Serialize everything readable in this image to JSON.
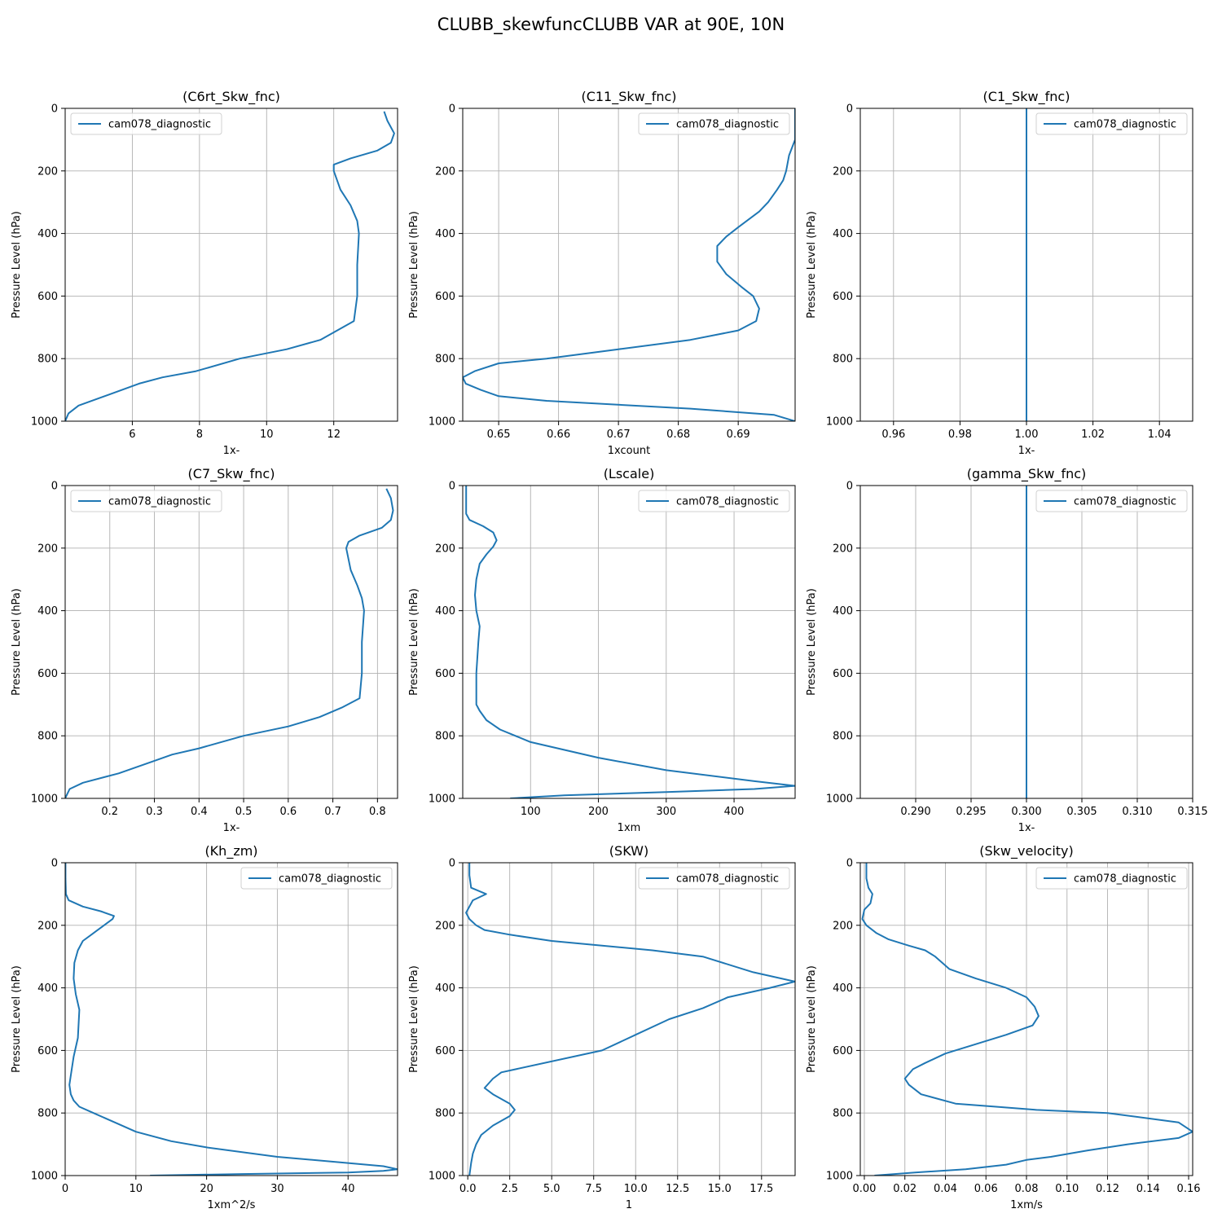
{
  "figure_title": "CLUBB_skewfuncCLUBB VAR at 90E, 10N",
  "colors": {
    "series": "#1f77b4",
    "grid": "#b0b0b0"
  },
  "chart_data": [
    {
      "type": "line",
      "title": "(C6rt_Skw_fnc)",
      "xlabel": "1x-",
      "ylabel": "Pressure Level (hPa)",
      "xlim": [
        4.0,
        13.9
      ],
      "ylim": [
        1000,
        0
      ],
      "y_inverted": true,
      "xticks": [
        6,
        8,
        10,
        12
      ],
      "xtick_labels": [
        "6",
        "8",
        "10",
        "12"
      ],
      "yticks": [
        0,
        200,
        400,
        600,
        800,
        1000
      ],
      "grid": true,
      "legend": "upper left",
      "series": [
        {
          "name": "cam078_diagnostic",
          "x": [
            13.5,
            13.6,
            13.8,
            13.7,
            13.3,
            12.5,
            12.0,
            12.0,
            12.2,
            12.5,
            12.7,
            12.75,
            12.7,
            12.7,
            12.6,
            11.6,
            10.6,
            9.2,
            7.9,
            6.9,
            6.2,
            5.3,
            4.4,
            4.1,
            4.0
          ],
          "y": [
            10,
            40,
            80,
            110,
            135,
            160,
            180,
            200,
            260,
            310,
            360,
            400,
            500,
            600,
            680,
            740,
            770,
            800,
            840,
            860,
            880,
            915,
            950,
            975,
            1000
          ]
        }
      ]
    },
    {
      "type": "line",
      "title": "(C11_Skw_fnc)",
      "xlabel": "1xcount",
      "ylabel": "Pressure Level (hPa)",
      "xlim": [
        0.644,
        0.6995
      ],
      "ylim": [
        1000,
        0
      ],
      "y_inverted": true,
      "xticks": [
        0.65,
        0.66,
        0.67,
        0.68,
        0.69
      ],
      "xtick_labels": [
        "0.65",
        "0.66",
        "0.67",
        "0.68",
        "0.69"
      ],
      "yticks": [
        0,
        200,
        400,
        600,
        800,
        1000
      ],
      "grid": true,
      "legend": "upper right",
      "series": [
        {
          "name": "cam078_diagnostic",
          "x": [
            0.6995,
            0.6995,
            0.6995,
            0.6985,
            0.698,
            0.6975,
            0.6965,
            0.695,
            0.6935,
            0.69,
            0.688,
            0.6865,
            0.6865,
            0.688,
            0.6905,
            0.6925,
            0.6935,
            0.693,
            0.69,
            0.682,
            0.67,
            0.658,
            0.65,
            0.646,
            0.644,
            0.6445,
            0.647,
            0.65,
            0.658,
            0.682,
            0.696,
            0.6995
          ],
          "y": [
            0,
            50,
            100,
            150,
            200,
            230,
            260,
            300,
            330,
            380,
            410,
            440,
            490,
            530,
            570,
            600,
            640,
            680,
            710,
            740,
            770,
            800,
            815,
            840,
            860,
            880,
            900,
            920,
            935,
            960,
            980,
            1000
          ]
        }
      ]
    },
    {
      "type": "line",
      "title": "(C1_Skw_fnc)",
      "xlabel": "1x-",
      "ylabel": "Pressure Level (hPa)",
      "xlim": [
        0.95,
        1.05
      ],
      "ylim": [
        1000,
        0
      ],
      "y_inverted": true,
      "xticks": [
        0.96,
        0.98,
        1.0,
        1.02,
        1.04
      ],
      "xtick_labels": [
        "0.96",
        "0.98",
        "1.00",
        "1.02",
        "1.04"
      ],
      "yticks": [
        0,
        200,
        400,
        600,
        800,
        1000
      ],
      "grid": true,
      "legend": "upper right",
      "series": [
        {
          "name": "cam078_diagnostic",
          "x": [
            1.0,
            1.0
          ],
          "y": [
            0,
            1000
          ]
        }
      ]
    },
    {
      "type": "line",
      "title": "(C7_Skw_fnc)",
      "xlabel": "1x-",
      "ylabel": "Pressure Level (hPa)",
      "xlim": [
        0.1,
        0.845
      ],
      "ylim": [
        1000,
        0
      ],
      "y_inverted": true,
      "xticks": [
        0.2,
        0.3,
        0.4,
        0.5,
        0.6,
        0.7,
        0.8
      ],
      "xtick_labels": [
        "0.2",
        "0.3",
        "0.4",
        "0.5",
        "0.6",
        "0.7",
        "0.8"
      ],
      "yticks": [
        0,
        200,
        400,
        600,
        800,
        1000
      ],
      "grid": true,
      "legend": "upper left",
      "series": [
        {
          "name": "cam078_diagnostic",
          "x": [
            0.82,
            0.83,
            0.835,
            0.83,
            0.81,
            0.76,
            0.735,
            0.73,
            0.74,
            0.755,
            0.765,
            0.77,
            0.765,
            0.765,
            0.76,
            0.72,
            0.67,
            0.6,
            0.5,
            0.4,
            0.34,
            0.3,
            0.22,
            0.14,
            0.11,
            0.1
          ],
          "y": [
            10,
            40,
            80,
            110,
            135,
            160,
            180,
            200,
            270,
            320,
            360,
            400,
            500,
            600,
            680,
            710,
            740,
            770,
            800,
            840,
            860,
            880,
            920,
            950,
            970,
            1000
          ]
        }
      ]
    },
    {
      "type": "line",
      "title": "(Lscale)",
      "xlabel": "1xm",
      "ylabel": "Pressure Level (hPa)",
      "xlim": [
        0,
        490
      ],
      "ylim": [
        1000,
        0
      ],
      "y_inverted": true,
      "xticks": [
        100,
        200,
        300,
        400
      ],
      "xtick_labels": [
        "100",
        "200",
        "300",
        "400"
      ],
      "yticks": [
        0,
        200,
        400,
        600,
        800,
        1000
      ],
      "grid": true,
      "legend": "upper right",
      "series": [
        {
          "name": "cam078_diagnostic",
          "x": [
            5,
            5,
            5,
            10,
            30,
            45,
            50,
            45,
            35,
            25,
            20,
            18,
            20,
            25,
            23,
            20,
            20,
            25,
            35,
            55,
            100,
            200,
            300,
            430,
            490,
            430,
            300,
            150,
            70
          ],
          "y": [
            0,
            50,
            90,
            110,
            130,
            150,
            175,
            195,
            220,
            250,
            300,
            350,
            400,
            450,
            500,
            600,
            700,
            720,
            750,
            780,
            820,
            870,
            910,
            945,
            960,
            970,
            980,
            990,
            1000
          ]
        }
      ]
    },
    {
      "type": "line",
      "title": "(gamma_Skw_fnc)",
      "xlabel": "1x-",
      "ylabel": "Pressure Level (hPa)",
      "xlim": [
        0.285,
        0.315
      ],
      "ylim": [
        1000,
        0
      ],
      "y_inverted": true,
      "xticks": [
        0.29,
        0.295,
        0.3,
        0.305,
        0.31,
        0.315
      ],
      "xtick_labels": [
        "0.290",
        "0.295",
        "0.300",
        "0.305",
        "0.310",
        "0.315"
      ],
      "yticks": [
        0,
        200,
        400,
        600,
        800,
        1000
      ],
      "grid": true,
      "legend": "upper right",
      "series": [
        {
          "name": "cam078_diagnostic",
          "x": [
            0.3,
            0.3
          ],
          "y": [
            0,
            1000
          ]
        }
      ]
    },
    {
      "type": "line",
      "title": "(Kh_zm)",
      "xlabel": "1xm^2/s",
      "ylabel": "Pressure Level (hPa)",
      "xlim": [
        0,
        47
      ],
      "ylim": [
        1000,
        0
      ],
      "y_inverted": true,
      "xticks": [
        0,
        10,
        20,
        30,
        40
      ],
      "xtick_labels": [
        "0",
        "10",
        "20",
        "30",
        "40"
      ],
      "yticks": [
        0,
        200,
        400,
        600,
        800,
        1000
      ],
      "grid": true,
      "legend": "upper right",
      "series": [
        {
          "name": "cam078_diagnostic",
          "x": [
            0.05,
            0.05,
            0.1,
            0.5,
            2.5,
            5.0,
            6.9,
            6.7,
            5.5,
            4.0,
            2.5,
            1.8,
            1.3,
            1.2,
            1.5,
            2.0,
            1.8,
            1.2,
            0.8,
            0.6,
            0.8,
            1.2,
            2.0,
            4.0,
            7.0,
            10.0,
            15.0,
            20.0,
            30.0,
            40.0,
            45.0,
            47.0,
            45.0,
            40.0,
            25.0,
            12.0
          ],
          "y": [
            0,
            50,
            100,
            120,
            140,
            155,
            170,
            180,
            200,
            225,
            250,
            280,
            320,
            370,
            420,
            470,
            560,
            620,
            680,
            710,
            740,
            760,
            780,
            800,
            830,
            860,
            890,
            910,
            940,
            960,
            970,
            980,
            985,
            990,
            995,
            1000
          ]
        }
      ]
    },
    {
      "type": "line",
      "title": "(SKW)",
      "xlabel": "1",
      "ylabel": "Pressure Level (hPa)",
      "xlim": [
        -0.3,
        19.5
      ],
      "ylim": [
        1000,
        0
      ],
      "y_inverted": true,
      "xticks": [
        0,
        2.5,
        5,
        7.5,
        10,
        12.5,
        15,
        17.5
      ],
      "xtick_labels": [
        "0.0",
        "2.5",
        "5.0",
        "7.5",
        "10.0",
        "12.5",
        "15.0",
        "17.5"
      ],
      "yticks": [
        0,
        200,
        400,
        600,
        800,
        1000
      ],
      "grid": true,
      "legend": "upper right",
      "series": [
        {
          "name": "cam078_diagnostic",
          "x": [
            0.1,
            0.1,
            0.2,
            1.1,
            0.3,
            0.1,
            -0.1,
            0.1,
            0.5,
            1.0,
            2.5,
            5.0,
            8.0,
            11.0,
            14.0,
            17.0,
            19.5,
            18.0,
            15.5,
            14.0,
            12.0,
            10.0,
            8.0,
            2.0,
            1.5,
            1.0,
            1.5,
            2.5,
            2.8,
            2.5,
            1.5,
            0.8,
            0.5,
            0.3,
            0.2,
            0.1
          ],
          "y": [
            0,
            40,
            80,
            100,
            120,
            140,
            160,
            180,
            200,
            215,
            230,
            250,
            265,
            280,
            300,
            350,
            380,
            400,
            430,
            465,
            500,
            550,
            600,
            670,
            690,
            720,
            740,
            770,
            790,
            810,
            840,
            870,
            900,
            930,
            960,
            1000
          ]
        }
      ]
    },
    {
      "type": "line",
      "title": "(Skw_velocity)",
      "xlabel": "1xm/s",
      "ylabel": "Pressure Level (hPa)",
      "xlim": [
        -0.002,
        0.162
      ],
      "ylim": [
        1000,
        0
      ],
      "y_inverted": true,
      "xticks": [
        0,
        0.02,
        0.04,
        0.06,
        0.08,
        0.1,
        0.12,
        0.14,
        0.16
      ],
      "xtick_labels": [
        "0.00",
        "0.02",
        "0.04",
        "0.06",
        "0.08",
        "0.10",
        "0.12",
        "0.14",
        "0.16"
      ],
      "yticks": [
        0,
        200,
        400,
        600,
        800,
        1000
      ],
      "grid": true,
      "legend": "upper right",
      "series": [
        {
          "name": "cam078_diagnostic",
          "x": [
            0.001,
            0.001,
            0.002,
            0.004,
            0.003,
            0.0,
            -0.001,
            0.001,
            0.006,
            0.012,
            0.022,
            0.03,
            0.035,
            0.042,
            0.055,
            0.07,
            0.08,
            0.084,
            0.086,
            0.083,
            0.07,
            0.055,
            0.04,
            0.03,
            0.024,
            0.02,
            0.022,
            0.028,
            0.045,
            0.065,
            0.085,
            0.12,
            0.155,
            0.162,
            0.155,
            0.13,
            0.11,
            0.092,
            0.08,
            0.07,
            0.05,
            0.025,
            0.005
          ],
          "y": [
            0,
            50,
            80,
            100,
            130,
            150,
            180,
            200,
            225,
            245,
            265,
            280,
            300,
            340,
            370,
            400,
            430,
            460,
            490,
            520,
            550,
            580,
            610,
            640,
            660,
            690,
            710,
            740,
            770,
            780,
            790,
            800,
            830,
            860,
            880,
            900,
            920,
            940,
            950,
            965,
            980,
            990,
            1000
          ]
        }
      ]
    }
  ]
}
